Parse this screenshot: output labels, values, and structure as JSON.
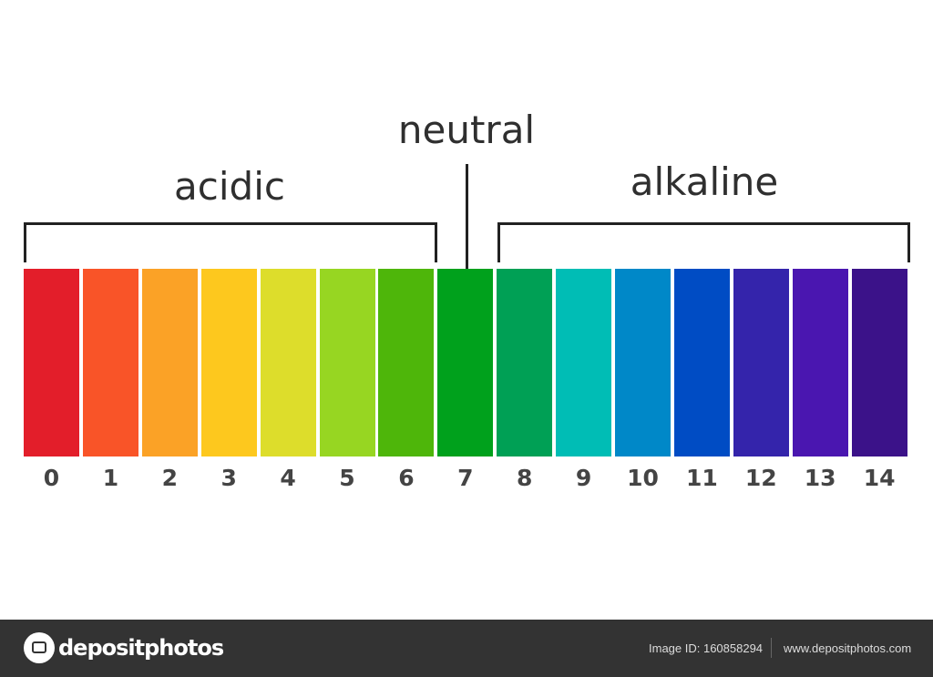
{
  "labels": {
    "neutral": "neutral",
    "acidic": "acidic",
    "alkaline": "alkaline"
  },
  "scale": [
    {
      "value": "0",
      "color": "#e31e2a"
    },
    {
      "value": "1",
      "color": "#f95428"
    },
    {
      "value": "2",
      "color": "#fba226"
    },
    {
      "value": "3",
      "color": "#fdc81e"
    },
    {
      "value": "4",
      "color": "#dddd2b"
    },
    {
      "value": "5",
      "color": "#97d622"
    },
    {
      "value": "6",
      "color": "#4eb60a"
    },
    {
      "value": "7",
      "color": "#00a11c"
    },
    {
      "value": "8",
      "color": "#00a055"
    },
    {
      "value": "9",
      "color": "#00bdb5"
    },
    {
      "value": "10",
      "color": "#0088c8"
    },
    {
      "value": "11",
      "color": "#004cc4"
    },
    {
      "value": "12",
      "color": "#3424ab"
    },
    {
      "value": "13",
      "color": "#4a16b0"
    },
    {
      "value": "14",
      "color": "#3b1289"
    }
  ],
  "footer": {
    "logo_text": "depositphotos",
    "image_id": "Image ID: 160858294",
    "site": "www.depositphotos.com"
  }
}
